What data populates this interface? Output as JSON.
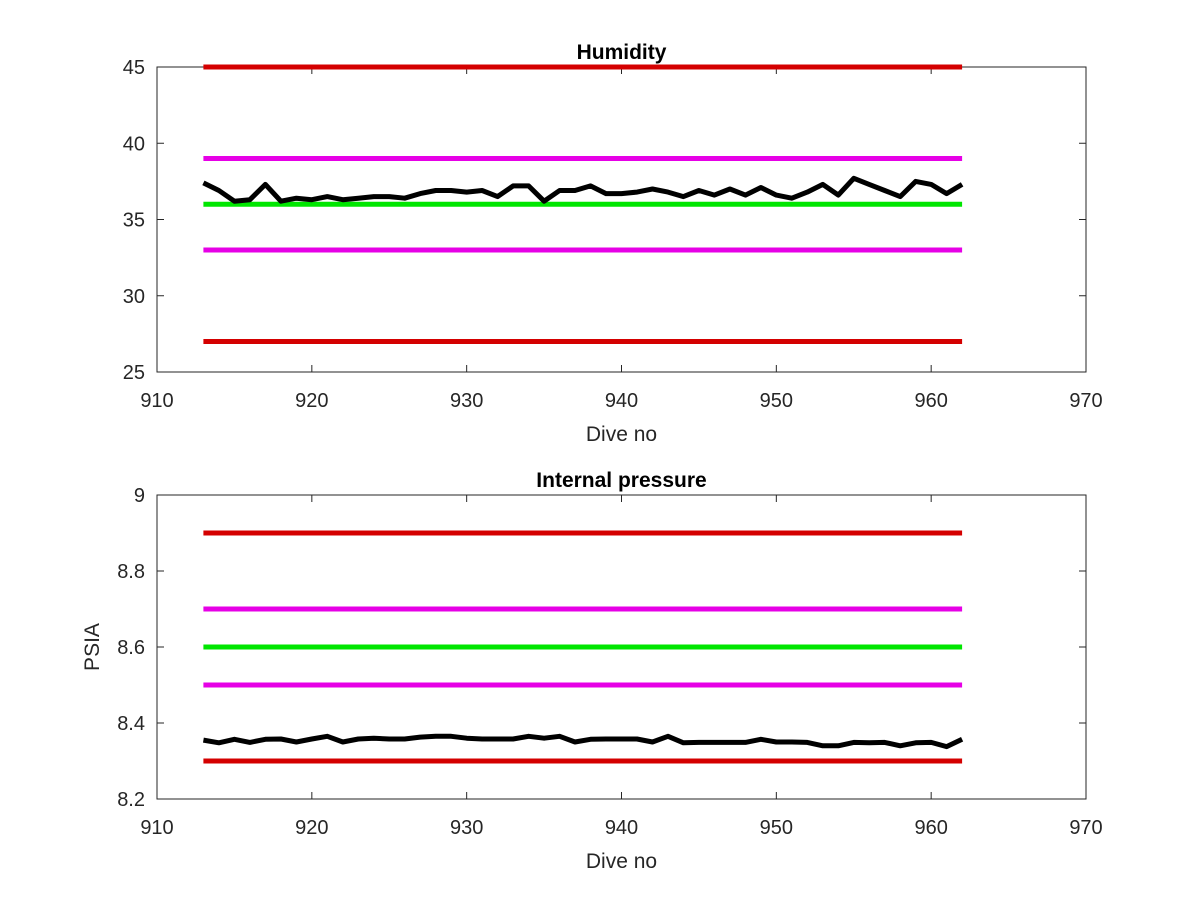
{
  "chart_data": [
    {
      "type": "line",
      "title": "Humidity",
      "xlabel": "Dive no",
      "ylabel": "",
      "xlim": [
        910,
        970
      ],
      "ylim": [
        25,
        45
      ],
      "xticks": [
        910,
        920,
        930,
        940,
        950,
        960,
        970
      ],
      "yticks": [
        25,
        30,
        35,
        40,
        45
      ],
      "grid": false,
      "series": [
        {
          "role": "limit",
          "color": "#d40000",
          "x": [
            913,
            962
          ],
          "y": [
            45,
            45
          ]
        },
        {
          "role": "limit",
          "color": "#e600e6",
          "x": [
            913,
            962
          ],
          "y": [
            39,
            39
          ]
        },
        {
          "role": "nominal",
          "color": "#00e600",
          "x": [
            913,
            962
          ],
          "y": [
            36,
            36
          ]
        },
        {
          "role": "limit",
          "color": "#e600e6",
          "x": [
            913,
            962
          ],
          "y": [
            33,
            33
          ]
        },
        {
          "role": "limit",
          "color": "#d40000",
          "x": [
            913,
            962
          ],
          "y": [
            27,
            27
          ]
        },
        {
          "role": "measured",
          "color": "#000000",
          "x": [
            913,
            914,
            915,
            916,
            917,
            918,
            919,
            920,
            921,
            922,
            923,
            924,
            925,
            926,
            927,
            928,
            929,
            930,
            931,
            932,
            933,
            934,
            935,
            936,
            937,
            938,
            939,
            940,
            941,
            942,
            943,
            944,
            945,
            946,
            947,
            948,
            949,
            950,
            951,
            952,
            953,
            954,
            955,
            956,
            957,
            958,
            959,
            960,
            961,
            962
          ],
          "y": [
            37.4,
            36.9,
            36.2,
            36.3,
            37.3,
            36.2,
            36.4,
            36.3,
            36.5,
            36.3,
            36.4,
            36.5,
            36.5,
            36.4,
            36.7,
            36.9,
            36.9,
            36.8,
            36.9,
            36.5,
            37.2,
            37.2,
            36.2,
            36.9,
            36.9,
            37.2,
            36.7,
            36.7,
            36.8,
            37.0,
            36.8,
            36.5,
            36.9,
            36.6,
            37.0,
            36.6,
            37.1,
            36.6,
            36.4,
            36.8,
            37.3,
            36.6,
            37.7,
            37.3,
            36.9,
            36.5,
            37.5,
            37.3,
            36.7,
            37.3
          ]
        }
      ]
    },
    {
      "type": "line",
      "title": "Internal pressure",
      "xlabel": "Dive no",
      "ylabel": "PSIA",
      "xlim": [
        910,
        970
      ],
      "ylim": [
        8.2,
        9
      ],
      "xticks": [
        910,
        920,
        930,
        940,
        950,
        960,
        970
      ],
      "yticks": [
        "8.2",
        "8.4",
        "8.6",
        "8.8",
        "9"
      ],
      "grid": false,
      "series": [
        {
          "role": "limit",
          "color": "#d40000",
          "x": [
            913,
            962
          ],
          "y": [
            8.9,
            8.9
          ]
        },
        {
          "role": "limit",
          "color": "#e600e6",
          "x": [
            913,
            962
          ],
          "y": [
            8.7,
            8.7
          ]
        },
        {
          "role": "nominal",
          "color": "#00e600",
          "x": [
            913,
            962
          ],
          "y": [
            8.6,
            8.6
          ]
        },
        {
          "role": "limit",
          "color": "#e600e6",
          "x": [
            913,
            962
          ],
          "y": [
            8.5,
            8.5
          ]
        },
        {
          "role": "limit",
          "color": "#d40000",
          "x": [
            913,
            962
          ],
          "y": [
            8.3,
            8.3
          ]
        },
        {
          "role": "measured",
          "color": "#000000",
          "x": [
            913,
            914,
            915,
            916,
            917,
            918,
            919,
            920,
            921,
            922,
            923,
            924,
            925,
            926,
            927,
            928,
            929,
            930,
            931,
            932,
            933,
            934,
            935,
            936,
            937,
            938,
            939,
            940,
            941,
            942,
            943,
            944,
            945,
            946,
            947,
            948,
            949,
            950,
            951,
            952,
            953,
            954,
            955,
            956,
            957,
            958,
            959,
            960,
            961,
            962
          ],
          "y": [
            8.355,
            8.348,
            8.357,
            8.349,
            8.357,
            8.358,
            8.35,
            8.358,
            8.365,
            8.35,
            8.358,
            8.36,
            8.358,
            8.358,
            8.363,
            8.365,
            8.365,
            8.36,
            8.358,
            8.358,
            8.358,
            8.365,
            8.36,
            8.365,
            8.35,
            8.357,
            8.358,
            8.358,
            8.358,
            8.35,
            8.365,
            8.348,
            8.349,
            8.349,
            8.349,
            8.349,
            8.357,
            8.35,
            8.35,
            8.349,
            8.34,
            8.34,
            8.349,
            8.348,
            8.349,
            8.34,
            8.348,
            8.349,
            8.338,
            8.357
          ]
        }
      ]
    }
  ]
}
